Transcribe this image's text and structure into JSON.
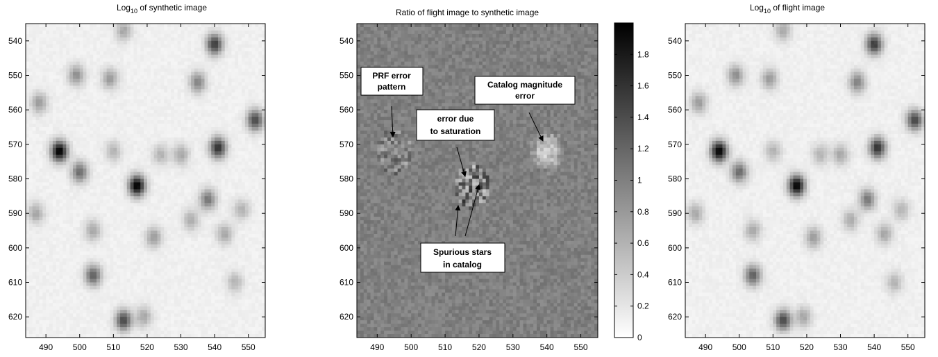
{
  "chart_data": [
    {
      "type": "heatmap",
      "title_main": "Log",
      "title_sub": "10",
      "title_rest": " of synthetic image",
      "xticks": [
        490,
        500,
        510,
        520,
        530,
        540,
        550
      ],
      "yticks": [
        540,
        550,
        560,
        570,
        580,
        590,
        600,
        610,
        620
      ],
      "xlim": [
        484,
        555
      ],
      "ylim": [
        535,
        626
      ],
      "colormap": "gray-inverted",
      "sources": [
        {
          "x": 494,
          "y": 572,
          "v": 1.0
        },
        {
          "x": 517,
          "y": 582,
          "v": 1.0
        },
        {
          "x": 541,
          "y": 571,
          "v": 0.8
        },
        {
          "x": 540,
          "y": 541,
          "v": 0.75
        },
        {
          "x": 552,
          "y": 563,
          "v": 0.7
        },
        {
          "x": 500,
          "y": 578,
          "v": 0.55
        },
        {
          "x": 513,
          "y": 621,
          "v": 0.7
        },
        {
          "x": 504,
          "y": 608,
          "v": 0.6
        },
        {
          "x": 538,
          "y": 586,
          "v": 0.5
        },
        {
          "x": 535,
          "y": 552,
          "v": 0.45
        },
        {
          "x": 499,
          "y": 550,
          "v": 0.4
        },
        {
          "x": 509,
          "y": 551,
          "v": 0.35
        },
        {
          "x": 522,
          "y": 597,
          "v": 0.35
        },
        {
          "x": 488,
          "y": 558,
          "v": 0.35
        },
        {
          "x": 504,
          "y": 595,
          "v": 0.3
        },
        {
          "x": 487,
          "y": 590,
          "v": 0.3
        },
        {
          "x": 513,
          "y": 537,
          "v": 0.3
        },
        {
          "x": 519,
          "y": 620,
          "v": 0.3
        },
        {
          "x": 533,
          "y": 592,
          "v": 0.28
        },
        {
          "x": 543,
          "y": 596,
          "v": 0.3
        },
        {
          "x": 510,
          "y": 572,
          "v": 0.25
        },
        {
          "x": 548,
          "y": 589,
          "v": 0.25
        },
        {
          "x": 546,
          "y": 610,
          "v": 0.25
        },
        {
          "x": 530,
          "y": 573,
          "v": 0.3
        },
        {
          "x": 524,
          "y": 573,
          "v": 0.25
        }
      ]
    },
    {
      "type": "heatmap",
      "title": "Ratio of flight image to synthetic image",
      "xticks": [
        490,
        500,
        510,
        520,
        530,
        540,
        550
      ],
      "yticks": [
        540,
        550,
        560,
        570,
        580,
        590,
        600,
        610,
        620
      ],
      "xlim": [
        484,
        555
      ],
      "ylim": [
        535,
        626
      ],
      "baseline": 1.0,
      "colormap": "gray-inverted",
      "colorbar": {
        "range": [
          0,
          2
        ],
        "ticks": [
          "0",
          "0.2",
          "0.4",
          "0.6",
          "0.8",
          "1",
          "1.2",
          "1.4",
          "1.6",
          "1.8"
        ]
      },
      "features": [
        {
          "x": 495,
          "y": 572,
          "kind": "ring"
        },
        {
          "x": 540,
          "y": 572,
          "kind": "bright"
        },
        {
          "x": 518,
          "y": 582,
          "kind": "mixed"
        }
      ],
      "annotations": [
        {
          "lines": [
            "PRF error",
            "pattern"
          ]
        },
        {
          "lines": [
            "Catalog magnitude",
            "error"
          ]
        },
        {
          "lines": [
            "error due",
            "to saturation"
          ]
        },
        {
          "lines": [
            "Spurious stars",
            "in catalog"
          ]
        }
      ]
    },
    {
      "type": "heatmap",
      "title_main": "Log",
      "title_sub": "10",
      "title_rest": " of flight image",
      "xticks": [
        490,
        500,
        510,
        520,
        530,
        540,
        550
      ],
      "yticks": [
        540,
        550,
        560,
        570,
        580,
        590,
        600,
        610,
        620
      ],
      "xlim": [
        484,
        555
      ],
      "ylim": [
        535,
        626
      ],
      "colormap": "gray-inverted",
      "same_sources_as": 0
    }
  ]
}
